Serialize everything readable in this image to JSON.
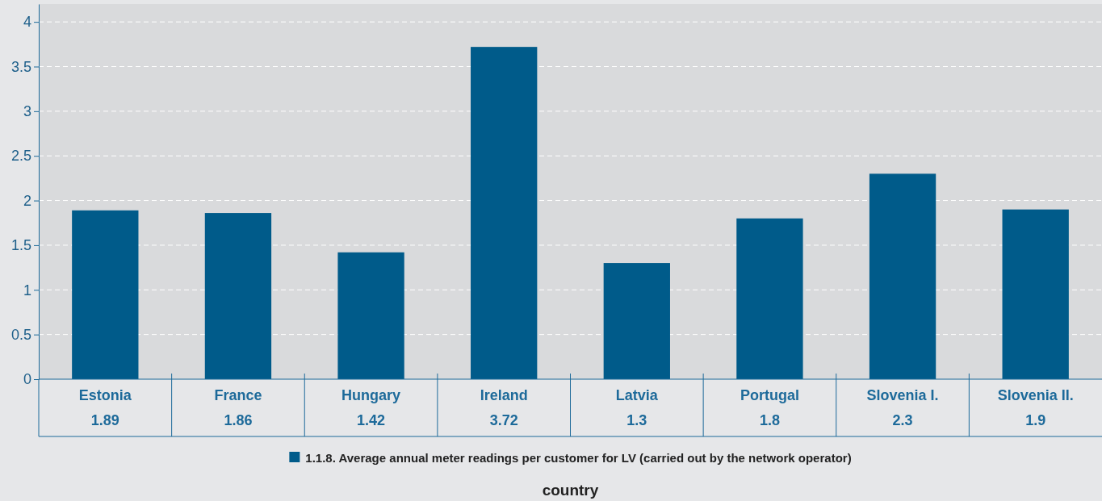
{
  "chart_data": {
    "type": "bar",
    "annotations": [
      "country"
    ],
    "categories": [
      "Estonia",
      "France",
      "Hungary",
      "Ireland",
      "Latvia",
      "Portugal",
      "Slovenia I.",
      "Slovenia II."
    ],
    "series": [
      {
        "name": "1.1.8. Average annual meter readings per customer for LV (carried out by the network operator)",
        "color": "#005b8a",
        "values": [
          1.89,
          1.86,
          1.42,
          3.72,
          1.3,
          1.8,
          2.3,
          1.9
        ]
      }
    ],
    "ylim": [
      0,
      4.2
    ],
    "yticks": [
      0,
      0.5,
      1,
      1.5,
      2,
      2.5,
      3,
      3.5,
      4
    ],
    "grid": "y",
    "legend": "bottom",
    "data_labels": true
  }
}
